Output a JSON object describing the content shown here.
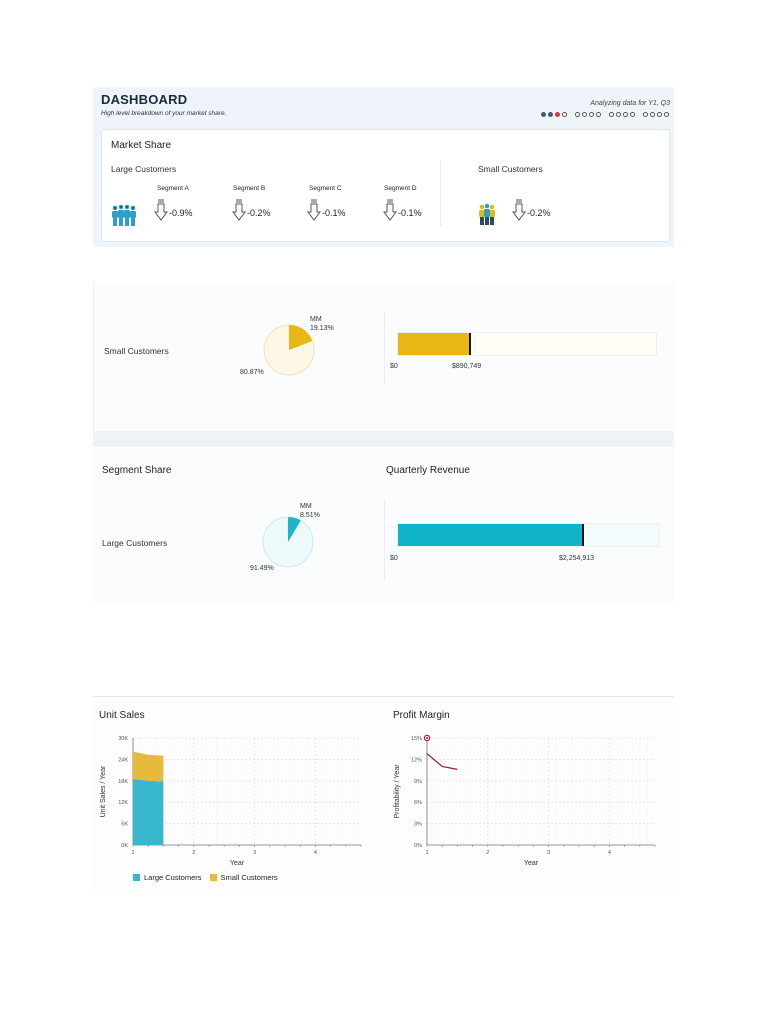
{
  "header": {
    "title": "DASHBOARD",
    "subtitle": "High level breakdown of your market share.",
    "analyzing": "Analyzing data for Y1, Q3",
    "progress": {
      "filled": 2,
      "active_index": 2,
      "groups": [
        4,
        4,
        4,
        4
      ]
    }
  },
  "market_share": {
    "title": "Market Share",
    "large_customers": {
      "label": "Large Customers",
      "segments": [
        {
          "name": "Segment A",
          "value": "-0.9%"
        },
        {
          "name": "Segment B",
          "value": "-0.2%"
        },
        {
          "name": "Segment C",
          "value": "-0.1%"
        },
        {
          "name": "Segment D",
          "value": "-0.1%"
        }
      ]
    },
    "small_customers": {
      "label": "Small Customers",
      "value": "-0.2%"
    }
  },
  "small_row": {
    "label": "Small Customers",
    "pie": {
      "mm_label": "MM",
      "mm_pct": "19.13%",
      "other_pct": "80.87%",
      "mm_value": 19.13,
      "other_value": 80.87,
      "color": "#e9b713"
    },
    "bar": {
      "min_label": "$0",
      "value_label": "$890,749",
      "fill_fraction": 0.28,
      "color": "#e9b713"
    }
  },
  "large_row": {
    "segment_share_title": "Segment Share",
    "quarterly_revenue_title": "Quarterly Revenue",
    "label": "Large Customers",
    "pie": {
      "mm_label": "MM",
      "mm_pct": "8.51%",
      "other_pct": "91.49%",
      "mm_value": 8.51,
      "other_value": 91.49,
      "color": "#1eb5cc"
    },
    "bar": {
      "min_label": "$0",
      "value_label": "$2,254,913",
      "fill_fraction": 0.71,
      "color": "#10b4c8"
    }
  },
  "chart_data": [
    {
      "type": "area",
      "title": "Unit Sales",
      "xlabel": "Year",
      "ylabel": "Unit Sales / Year",
      "ylim": [
        0,
        30000
      ],
      "xlim": [
        1,
        4.75
      ],
      "y_ticks": [
        "0K",
        "6K",
        "12K",
        "18K",
        "24K",
        "30K"
      ],
      "x_ticks": [
        "1",
        "2",
        "3",
        "4"
      ],
      "x": [
        1,
        1.25,
        1.5
      ],
      "series": [
        {
          "name": "Large Customers",
          "values": [
            18500,
            18000,
            17800
          ],
          "color": "#37b8ce"
        },
        {
          "name": "Small Customers",
          "values": [
            7700,
            7300,
            7200
          ],
          "color": "#e8ba3c"
        }
      ],
      "stacked": true,
      "grid": true,
      "legend": "bottom"
    },
    {
      "type": "line",
      "title": "Profit Margin",
      "xlabel": "Year",
      "ylabel": "Profitability / Year",
      "ylim": [
        0,
        15
      ],
      "xlim": [
        1,
        4.75
      ],
      "y_ticks": [
        "0%",
        "3%",
        "6%",
        "9%",
        "12%",
        "15%"
      ],
      "x_ticks": [
        "1",
        "2",
        "3",
        "4"
      ],
      "x": [
        1,
        1.25,
        1.5
      ],
      "series": [
        {
          "name": "Profit Margin",
          "values": [
            12.8,
            11.0,
            10.6
          ],
          "color": "#9c1c22"
        }
      ],
      "grid": true
    }
  ],
  "colors": {
    "accent": "#d23a3a",
    "large": "#37b8ce",
    "small": "#e8ba3c",
    "icon_blue": "#2d9fc9"
  }
}
